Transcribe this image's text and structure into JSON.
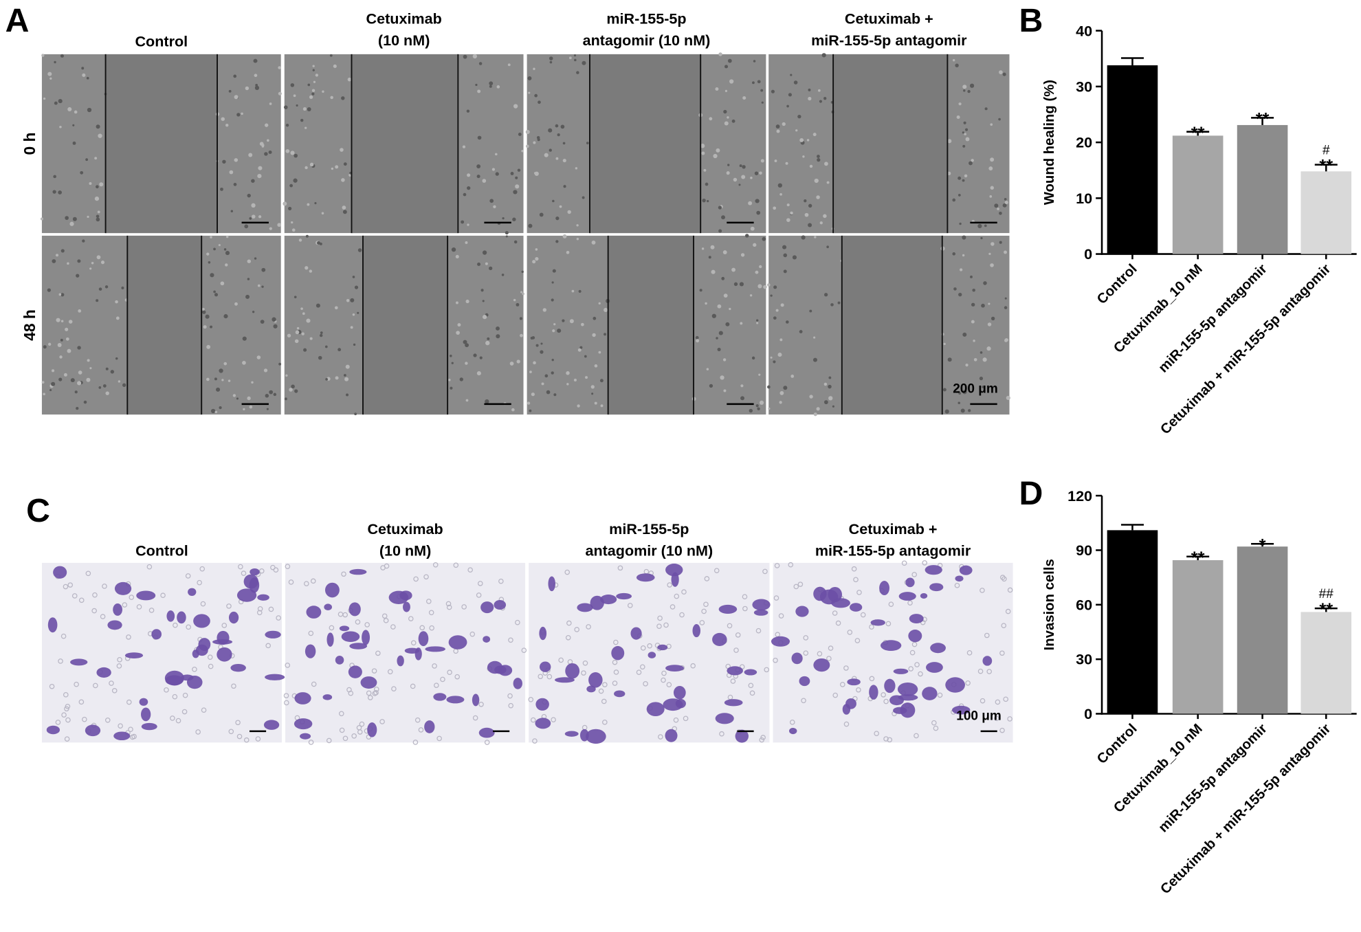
{
  "panel_A": {
    "label": "A",
    "columns": [
      [
        "Control"
      ],
      [
        "Cetuximab",
        "(10 nM)"
      ],
      [
        "miR-155-5p",
        "antagomir (10 nM)"
      ],
      [
        "Cetuximab +",
        "miR-155-5p antagomir"
      ]
    ],
    "rows": [
      "0 h",
      "48 h"
    ],
    "scale_bar": "200 μm"
  },
  "panel_C": {
    "label": "C",
    "columns": [
      [
        "Control"
      ],
      [
        "Cetuximab",
        "(10 nM)"
      ],
      [
        "miR-155-5p",
        "antagomir (10 nM)"
      ],
      [
        "Cetuximab +",
        "miR-155-5p antagomir"
      ]
    ],
    "scale_bar": "100 μm"
  },
  "chart_data": [
    {
      "type": "bar",
      "panel_label": "B",
      "y_label": "Wound healing (%)",
      "categories": [
        "Control",
        "Cetuximab_10 nM",
        "miR-155-5p antagomir",
        "Cetuximab + miR-155-5p antagomir"
      ],
      "values": [
        33.8,
        21.2,
        23.1,
        14.8
      ],
      "errors": [
        1.3,
        0.7,
        1.3,
        1.2
      ],
      "colors": [
        "#000000",
        "#a6a6a6",
        "#8c8c8c",
        "#d9d9d9"
      ],
      "annotations": [
        null,
        "**",
        "**",
        "**"
      ],
      "annotations_top": [
        null,
        null,
        null,
        "#"
      ],
      "ylim": [
        0,
        40
      ],
      "yticks": [
        0,
        10,
        20,
        30,
        40
      ]
    },
    {
      "type": "bar",
      "panel_label": "D",
      "y_label": "Invasion cells",
      "categories": [
        "Control",
        "Cetuximab_10 nM",
        "miR-155-5p antagomir",
        "Cetuximab + miR-155-5p antagomir"
      ],
      "values": [
        101,
        84.5,
        92,
        56
      ],
      "errors": [
        3,
        2,
        1.5,
        2
      ],
      "colors": [
        "#000000",
        "#a6a6a6",
        "#8c8c8c",
        "#d9d9d9"
      ],
      "annotations": [
        null,
        "**",
        "*",
        "**"
      ],
      "annotations_top": [
        null,
        null,
        null,
        "##"
      ],
      "ylim": [
        0,
        120
      ],
      "yticks": [
        0,
        30,
        60,
        90,
        120
      ]
    }
  ]
}
